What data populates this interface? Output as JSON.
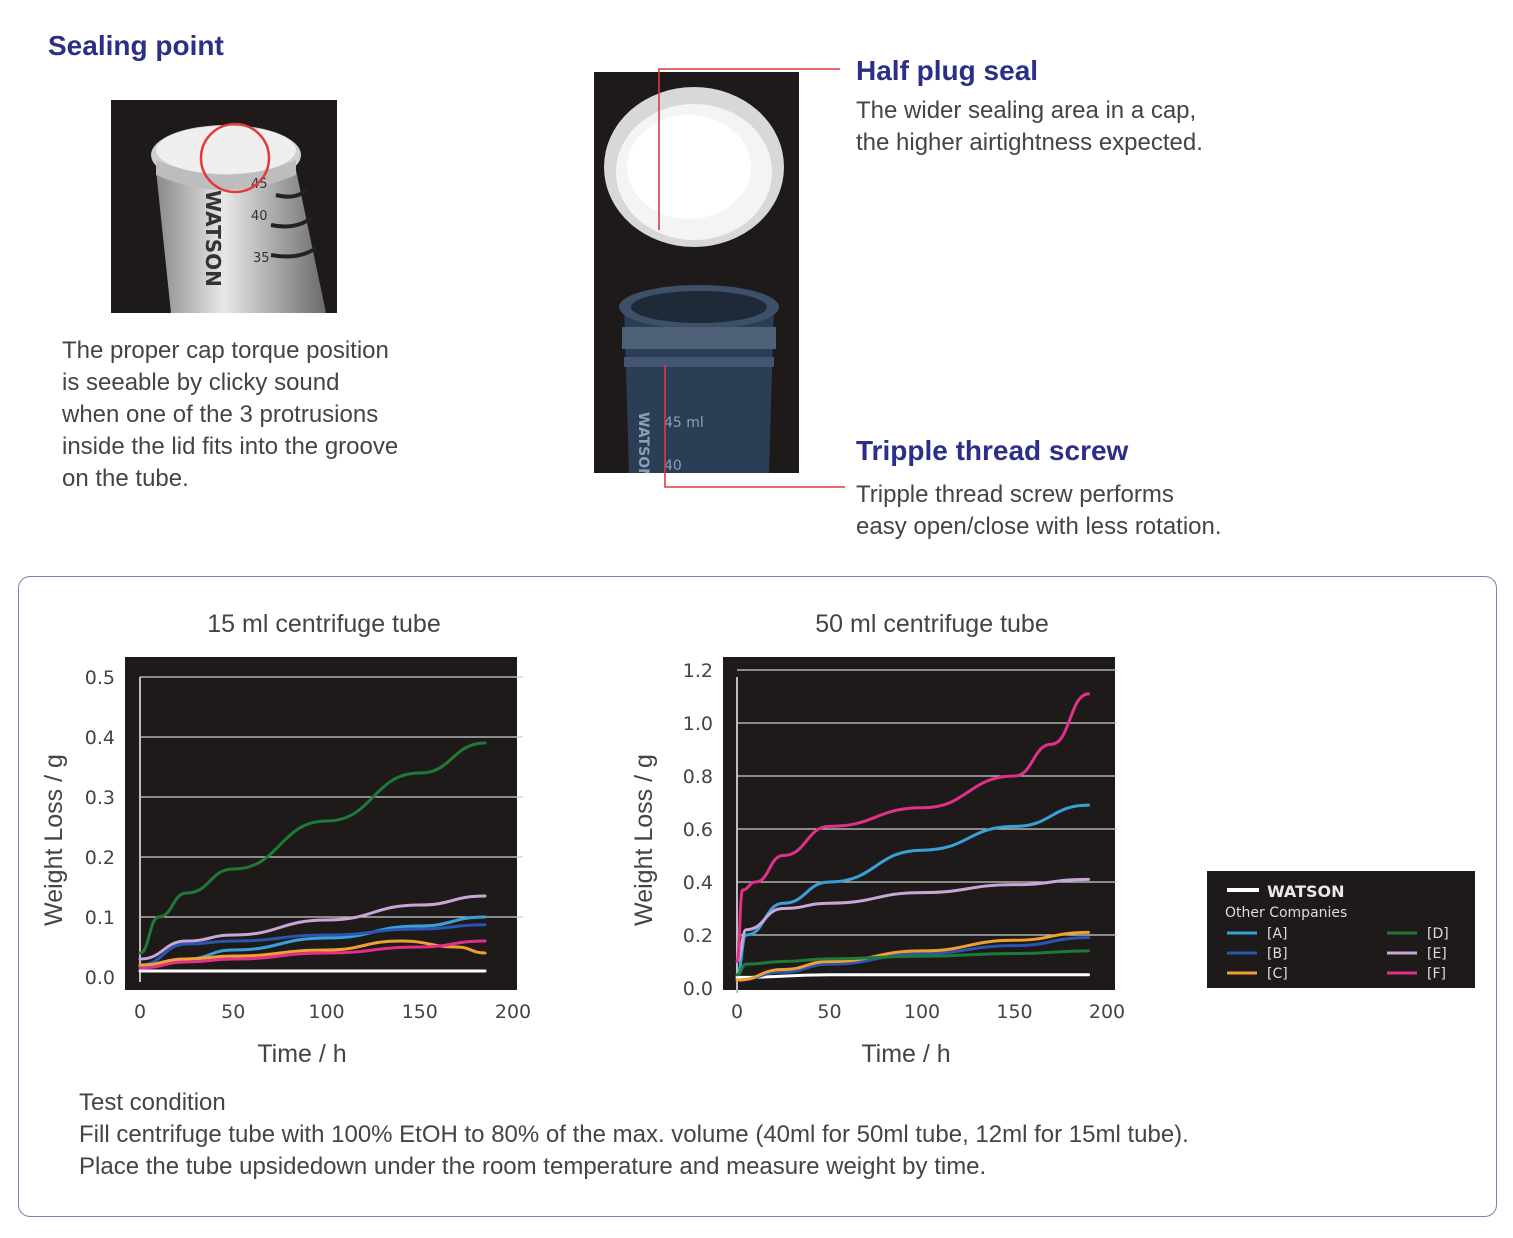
{
  "top": {
    "sealing_heading": "Sealing point",
    "sealing_text": [
      "The proper cap torque position",
      "is seeable by clicky sound",
      "when one of the 3 protrusions",
      "inside the lid fits into the groove",
      "on the tube."
    ],
    "photo_brand": "WATSON",
    "photo_marks": [
      "45",
      "40",
      "35"
    ],
    "half_plug_heading": "Half plug seal",
    "half_plug_text": [
      "The wider sealing area in a cap,",
      "the higher airtightness expected."
    ],
    "thread_heading": "Tripple thread screw",
    "thread_text": [
      "Tripple thread screw performs",
      "easy open/close with less rotation."
    ],
    "tube_marks": [
      "45 ml",
      "40"
    ],
    "tube_brand": "WATSON"
  },
  "colors": {
    "heading": "#2b2f86",
    "callout": "#e03a3a",
    "panel_border": "#7b80b0",
    "plot_bg": "#1e1a1a"
  },
  "chart_data": [
    {
      "type": "line",
      "title": "15 ml centrifuge tube",
      "xlabel": "Time / h",
      "ylabel": "Weight Loss / g",
      "xlim": [
        0,
        200
      ],
      "ylim": [
        0,
        0.5
      ],
      "xticks": [
        "0",
        "50",
        "100",
        "150",
        "200"
      ],
      "yticks": [
        "0.0",
        "0.1",
        "0.2",
        "0.3",
        "0.4",
        "0.5"
      ],
      "grid": true,
      "series": [
        {
          "name": "WATSON",
          "color": "#ffffff",
          "x": [
            0,
            50,
            100,
            150,
            185
          ],
          "y": [
            0.01,
            0.01,
            0.01,
            0.01,
            0.01
          ]
        },
        {
          "name": "[A]",
          "color": "#3aa0d8",
          "x": [
            0,
            25,
            50,
            100,
            150,
            185
          ],
          "y": [
            0.018,
            0.03,
            0.045,
            0.065,
            0.085,
            0.1
          ]
        },
        {
          "name": "[B]",
          "color": "#2a56b0",
          "x": [
            0,
            25,
            50,
            100,
            150,
            185
          ],
          "y": [
            0.02,
            0.055,
            0.06,
            0.07,
            0.08,
            0.087
          ]
        },
        {
          "name": "[C]",
          "color": "#f0a030",
          "x": [
            0,
            25,
            50,
            100,
            140,
            170,
            185
          ],
          "y": [
            0.02,
            0.03,
            0.035,
            0.045,
            0.06,
            0.05,
            0.04
          ]
        },
        {
          "name": "[D]",
          "color": "#1f7a3a",
          "x": [
            0,
            10,
            25,
            50,
            100,
            150,
            185
          ],
          "y": [
            0.04,
            0.1,
            0.14,
            0.18,
            0.26,
            0.34,
            0.39
          ]
        },
        {
          "name": "[E]",
          "color": "#c9a6d8",
          "x": [
            0,
            25,
            50,
            100,
            150,
            185
          ],
          "y": [
            0.03,
            0.06,
            0.07,
            0.095,
            0.12,
            0.135
          ]
        },
        {
          "name": "[F]",
          "color": "#e0308a",
          "x": [
            0,
            25,
            50,
            100,
            150,
            185
          ],
          "y": [
            0.015,
            0.025,
            0.03,
            0.04,
            0.05,
            0.06
          ]
        }
      ]
    },
    {
      "type": "line",
      "title": "50 ml centrifuge tube",
      "xlabel": "Time / h",
      "ylabel": "Weight Loss / g",
      "xlim": [
        0,
        200
      ],
      "ylim": [
        0,
        1.2
      ],
      "xticks": [
        "0",
        "50",
        "100",
        "150",
        "200"
      ],
      "yticks": [
        "0.0",
        "0.2",
        "0.4",
        "0.6",
        "0.8",
        "1.0",
        "1.2"
      ],
      "grid": true,
      "series": [
        {
          "name": "WATSON",
          "color": "#ffffff",
          "x": [
            0,
            50,
            100,
            150,
            190
          ],
          "y": [
            0.04,
            0.05,
            0.05,
            0.05,
            0.05
          ]
        },
        {
          "name": "[A]",
          "color": "#3aa0d8",
          "x": [
            0,
            5,
            25,
            50,
            100,
            150,
            190
          ],
          "y": [
            0.05,
            0.2,
            0.32,
            0.4,
            0.52,
            0.61,
            0.69
          ]
        },
        {
          "name": "[B]",
          "color": "#2a56b0",
          "x": [
            0,
            25,
            50,
            100,
            150,
            190
          ],
          "y": [
            0.03,
            0.06,
            0.09,
            0.13,
            0.16,
            0.19
          ]
        },
        {
          "name": "[C]",
          "color": "#f0a030",
          "x": [
            0,
            25,
            50,
            100,
            150,
            190
          ],
          "y": [
            0.03,
            0.07,
            0.1,
            0.14,
            0.18,
            0.21
          ]
        },
        {
          "name": "[D]",
          "color": "#1f7a3a",
          "x": [
            0,
            5,
            25,
            50,
            100,
            150,
            190
          ],
          "y": [
            0.05,
            0.09,
            0.1,
            0.11,
            0.12,
            0.13,
            0.14
          ]
        },
        {
          "name": "[E]",
          "color": "#c9a6d8",
          "x": [
            0,
            5,
            25,
            50,
            100,
            150,
            190
          ],
          "y": [
            0.1,
            0.22,
            0.3,
            0.32,
            0.36,
            0.39,
            0.41
          ]
        },
        {
          "name": "[F]",
          "color": "#e0308a",
          "x": [
            0,
            3,
            10,
            25,
            50,
            100,
            150,
            170,
            190
          ],
          "y": [
            0.1,
            0.37,
            0.4,
            0.5,
            0.61,
            0.68,
            0.8,
            0.92,
            1.11
          ]
        }
      ]
    }
  ],
  "legend": {
    "watson": "WATSON",
    "other": "Other Companies"
  },
  "test_condition": {
    "title": "Test condition",
    "lines": [
      "Fill centrifuge tube with 100% EtOH to 80% of the max. volume (40ml for 50ml tube, 12ml for 15ml tube).",
      "Place the tube upsidedown under the room temperature and measure weight by time."
    ]
  }
}
